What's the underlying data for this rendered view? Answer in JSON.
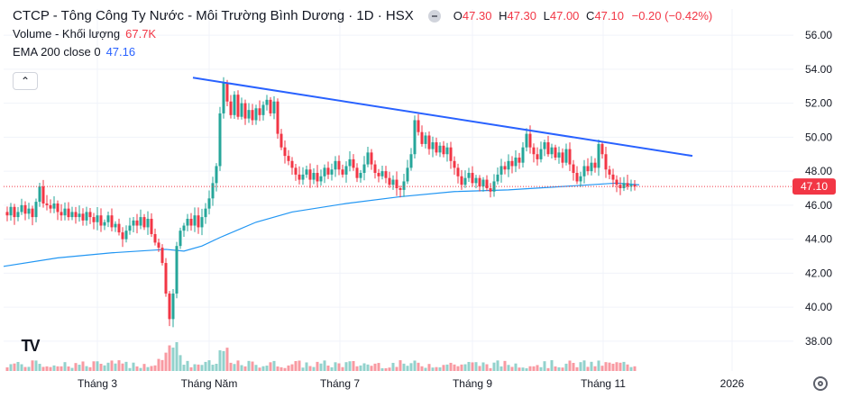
{
  "legend": {
    "title": "CTCP - Tông Công Ty Nước - Môi Trường Bình Dương · 1D · HSX",
    "ohlc": [
      {
        "k": "O",
        "v": "47.30"
      },
      {
        "k": "H",
        "v": "47.30"
      },
      {
        "k": "L",
        "v": "47.00"
      },
      {
        "k": "C",
        "v": "47.10"
      }
    ],
    "change": "−0.20 (−0.42%)",
    "volume_label": "Volume - Khối lượng",
    "volume_value": "67.7K",
    "ema_label": "EMA 200 close 0",
    "ema_value": "47.16"
  },
  "controls": {
    "collapse_glyph": "⌃",
    "logo_text": "TV"
  },
  "icons": {
    "collapse": "chevron-up-icon",
    "logo": "tradingview-logo-icon",
    "settings": "gear-icon"
  },
  "colors": {
    "up": "#26a69a",
    "down": "#f23645",
    "ema": "#2196f3",
    "trendline": "#2962ff",
    "last_price_line": "#f23645",
    "grid": "#f0f3fa"
  },
  "chart_data": {
    "type": "candlestick",
    "y_ticks": [
      "56.00",
      "54.00",
      "52.00",
      "50.00",
      "48.00",
      "46.00",
      "44.00",
      "42.00",
      "40.00",
      "38.00"
    ],
    "ylim": [
      37.2,
      56.8
    ],
    "x_ticks": [
      "Tháng 3",
      "Tháng Năm",
      "Tháng 7",
      "Tháng 9",
      "Tháng 11",
      "2026"
    ],
    "last_price": "47.10",
    "trendline": {
      "from": [
        "Tháng Năm",
        53.5
      ],
      "to": [
        "Tháng 11+",
        48.9
      ]
    },
    "price_path": [
      [
        0,
        45.6
      ],
      [
        4,
        45.4
      ],
      [
        8,
        45.9
      ],
      [
        12,
        45.3
      ],
      [
        16,
        45.6
      ],
      [
        20,
        46.0
      ],
      [
        24,
        45.5
      ],
      [
        28,
        45.8
      ],
      [
        32,
        45.3
      ],
      [
        36,
        46.2
      ],
      [
        40,
        47.1
      ],
      [
        44,
        46.1
      ],
      [
        48,
        46.0
      ],
      [
        52,
        45.8
      ],
      [
        56,
        46.1
      ],
      [
        60,
        45.6
      ],
      [
        64,
        45.4
      ],
      [
        68,
        45.8
      ],
      [
        72,
        45.3
      ],
      [
        76,
        45.6
      ],
      [
        80,
        45.3
      ],
      [
        84,
        45.5
      ],
      [
        88,
        45.1
      ],
      [
        92,
        45.6
      ],
      [
        96,
        45.3
      ],
      [
        100,
        45.0
      ],
      [
        104,
        45.4
      ],
      [
        108,
        44.8
      ],
      [
        112,
        45.0
      ],
      [
        116,
        45.4
      ],
      [
        120,
        44.7
      ],
      [
        124,
        44.9
      ],
      [
        128,
        44.4
      ],
      [
        132,
        44.0
      ],
      [
        136,
        44.5
      ],
      [
        140,
        44.8
      ],
      [
        144,
        45.1
      ],
      [
        148,
        44.8
      ],
      [
        152,
        45.3
      ],
      [
        156,
        44.7
      ],
      [
        160,
        45.2
      ],
      [
        164,
        44.3
      ],
      [
        168,
        43.8
      ],
      [
        172,
        43.5
      ],
      [
        176,
        42.6
      ],
      [
        180,
        40.8
      ],
      [
        184,
        39.3
      ],
      [
        188,
        40.8
      ],
      [
        192,
        43.6
      ],
      [
        196,
        44.5
      ],
      [
        200,
        44.8
      ],
      [
        204,
        45.2
      ],
      [
        208,
        44.8
      ],
      [
        212,
        45.4
      ],
      [
        216,
        44.7
      ],
      [
        220,
        45.3
      ],
      [
        224,
        45.8
      ],
      [
        228,
        46.4
      ],
      [
        232,
        47.3
      ],
      [
        236,
        48.3
      ],
      [
        240,
        51.4
      ],
      [
        244,
        53.2
      ],
      [
        248,
        52.1
      ],
      [
        252,
        51.3
      ],
      [
        256,
        52.5
      ],
      [
        260,
        51.2
      ],
      [
        264,
        52.0
      ],
      [
        268,
        51.1
      ],
      [
        272,
        51.6
      ],
      [
        276,
        51.0
      ],
      [
        280,
        51.7
      ],
      [
        284,
        51.3
      ],
      [
        288,
        51.9
      ],
      [
        292,
        52.2
      ],
      [
        296,
        51.4
      ],
      [
        300,
        52.1
      ],
      [
        304,
        50.2
      ],
      [
        308,
        49.4
      ],
      [
        312,
        48.9
      ],
      [
        316,
        48.6
      ],
      [
        320,
        48.2
      ],
      [
        324,
        47.8
      ],
      [
        328,
        47.5
      ],
      [
        332,
        47.8
      ],
      [
        336,
        48.1
      ],
      [
        340,
        47.5
      ],
      [
        344,
        47.9
      ],
      [
        348,
        47.4
      ],
      [
        352,
        47.7
      ],
      [
        356,
        48.2
      ],
      [
        360,
        47.8
      ],
      [
        364,
        48.1
      ],
      [
        368,
        48.6
      ],
      [
        372,
        48.1
      ],
      [
        376,
        47.8
      ],
      [
        380,
        48.3
      ],
      [
        384,
        48.7
      ],
      [
        388,
        48.2
      ],
      [
        392,
        47.6
      ],
      [
        396,
        47.9
      ],
      [
        400,
        48.4
      ],
      [
        404,
        49.1
      ],
      [
        408,
        48.4
      ],
      [
        412,
        47.9
      ],
      [
        416,
        47.7
      ],
      [
        420,
        48.0
      ],
      [
        424,
        47.6
      ],
      [
        428,
        47.2
      ],
      [
        432,
        47.5
      ],
      [
        436,
        47.0
      ],
      [
        440,
        46.9
      ],
      [
        444,
        47.4
      ],
      [
        448,
        48.2
      ],
      [
        452,
        49.0
      ],
      [
        456,
        51.0
      ],
      [
        460,
        50.3
      ],
      [
        464,
        49.6
      ],
      [
        468,
        50.1
      ],
      [
        472,
        49.3
      ],
      [
        476,
        49.7
      ],
      [
        480,
        49.1
      ],
      [
        484,
        49.5
      ],
      [
        488,
        49.0
      ],
      [
        492,
        49.4
      ],
      [
        496,
        48.6
      ],
      [
        500,
        48.2
      ],
      [
        504,
        47.7
      ],
      [
        508,
        47.2
      ],
      [
        512,
        47.6
      ],
      [
        516,
        47.9
      ],
      [
        520,
        47.3
      ],
      [
        524,
        47.6
      ],
      [
        528,
        47.1
      ],
      [
        532,
        47.5
      ],
      [
        536,
        47.0
      ],
      [
        540,
        46.8
      ],
      [
        544,
        47.4
      ],
      [
        548,
        47.8
      ],
      [
        552,
        48.3
      ],
      [
        556,
        48.1
      ],
      [
        560,
        48.6
      ],
      [
        564,
        48.3
      ],
      [
        568,
        48.8
      ],
      [
        572,
        48.5
      ],
      [
        576,
        49.4
      ],
      [
        580,
        50.2
      ],
      [
        584,
        49.4
      ],
      [
        588,
        49.0
      ],
      [
        592,
        48.7
      ],
      [
        596,
        49.3
      ],
      [
        600,
        49.7
      ],
      [
        604,
        49.0
      ],
      [
        608,
        49.4
      ],
      [
        612,
        48.8
      ],
      [
        616,
        49.1
      ],
      [
        620,
        48.5
      ],
      [
        624,
        49.3
      ],
      [
        628,
        48.4
      ],
      [
        632,
        47.9
      ],
      [
        636,
        47.4
      ],
      [
        640,
        47.7
      ],
      [
        644,
        48.3
      ],
      [
        648,
        48.0
      ],
      [
        652,
        48.5
      ],
      [
        656,
        48.2
      ],
      [
        660,
        49.6
      ],
      [
        664,
        49.0
      ],
      [
        668,
        48.1
      ],
      [
        672,
        47.8
      ],
      [
        676,
        47.5
      ],
      [
        680,
        47.2
      ],
      [
        684,
        47.0
      ],
      [
        688,
        47.3
      ],
      [
        692,
        47.1
      ],
      [
        696,
        47.2
      ],
      [
        700,
        47.1
      ]
    ],
    "ema_path": [
      [
        0,
        42.4
      ],
      [
        60,
        42.9
      ],
      [
        120,
        43.2
      ],
      [
        180,
        43.4
      ],
      [
        200,
        43.3
      ],
      [
        220,
        43.6
      ],
      [
        240,
        44.1
      ],
      [
        280,
        45.0
      ],
      [
        320,
        45.6
      ],
      [
        380,
        46.1
      ],
      [
        440,
        46.5
      ],
      [
        500,
        46.8
      ],
      [
        560,
        46.9
      ],
      [
        620,
        47.1
      ],
      [
        680,
        47.3
      ],
      [
        705,
        47.2
      ]
    ]
  }
}
